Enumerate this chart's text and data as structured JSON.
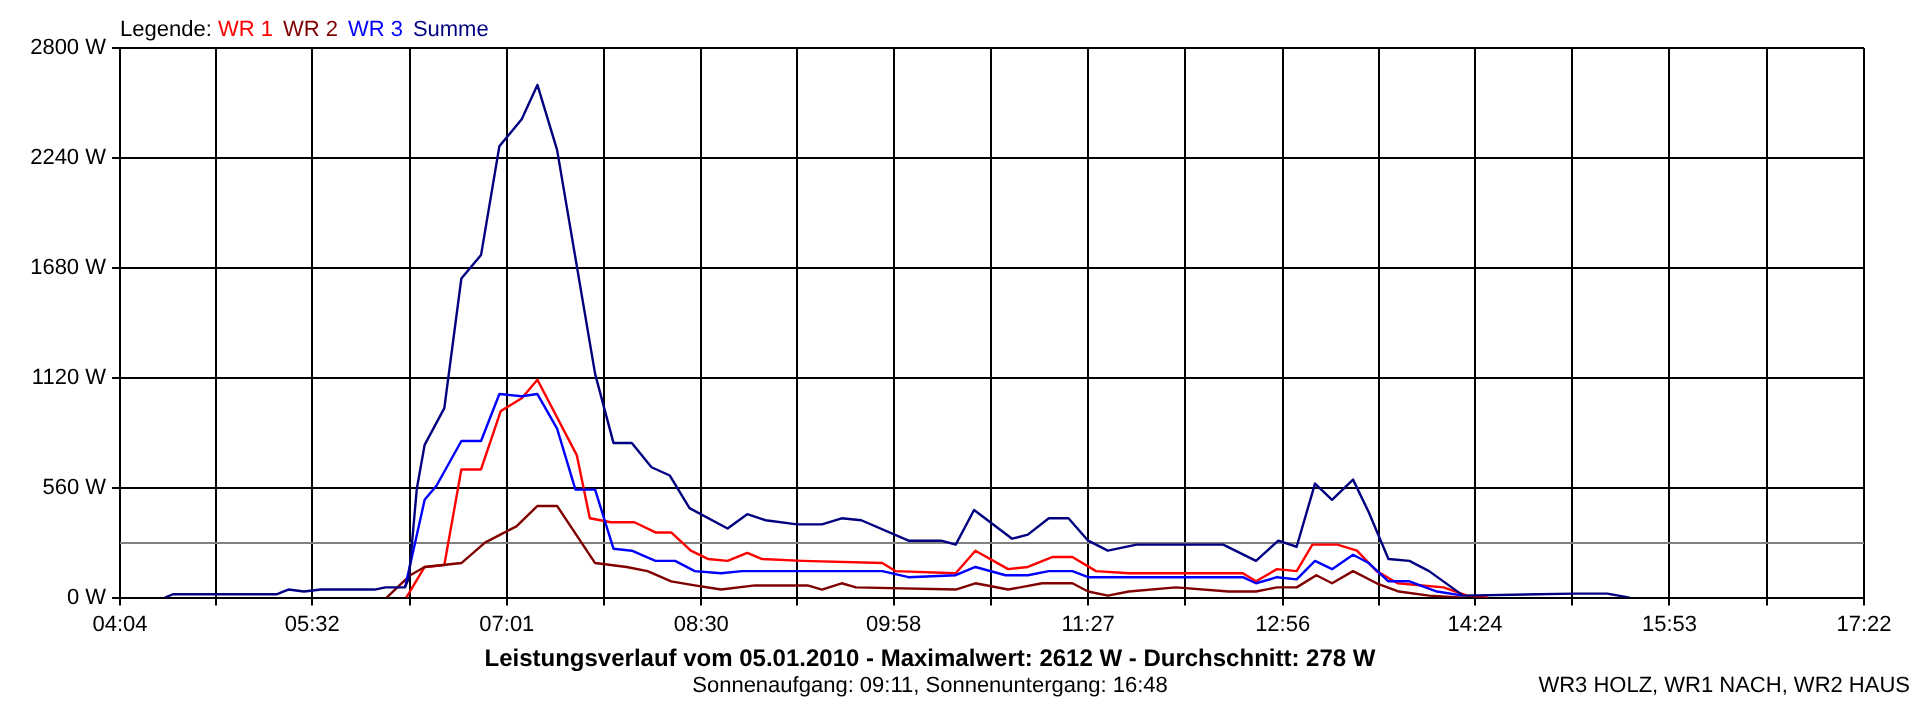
{
  "chart_data": {
    "type": "line",
    "title": "Leistungsverlauf vom 05.01.2010 - Maximalwert: 2612 W - Durchschnitt: 278 W",
    "subtitle": "Sonnenaufgang: 09:11, Sonnenuntergang: 16:48",
    "annotations": [
      "WR3 HOLZ, WR1 NACH, WR2 HAUS"
    ],
    "legend_title": "Legende:",
    "legend": "top left",
    "grid": true,
    "marker": "none",
    "line_style": "solid",
    "xlim": [
      4.0667,
      17.3667
    ],
    "xticks": [
      {
        "value": 4.0667,
        "label": "04:04"
      },
      {
        "value": 4.8,
        "label": null
      },
      {
        "value": 5.5333,
        "label": "05:32"
      },
      {
        "value": 6.275,
        "label": null
      },
      {
        "value": 7.0167,
        "label": "07:01"
      },
      {
        "value": 7.7583,
        "label": null
      },
      {
        "value": 8.5,
        "label": "08:30"
      },
      {
        "value": 9.2333,
        "label": null
      },
      {
        "value": 9.9667,
        "label": "09:58"
      },
      {
        "value": 10.7083,
        "label": null
      },
      {
        "value": 11.45,
        "label": "11:27"
      },
      {
        "value": 12.1917,
        "label": null
      },
      {
        "value": 12.9333,
        "label": "12:56"
      },
      {
        "value": 13.6667,
        "label": null
      },
      {
        "value": 14.4,
        "label": "14:24"
      },
      {
        "value": 15.1417,
        "label": null
      },
      {
        "value": 15.8833,
        "label": "15:53"
      },
      {
        "value": 16.625,
        "label": null
      },
      {
        "value": 17.3667,
        "label": "17:22"
      }
    ],
    "ylim": [
      0,
      2800
    ],
    "yticks": [
      {
        "value": 0,
        "label": "0 W"
      },
      {
        "value": 560,
        "label": "560 W"
      },
      {
        "value": 1120,
        "label": "1120 W"
      },
      {
        "value": 1680,
        "label": "1680 W"
      },
      {
        "value": 2240,
        "label": "2240 W"
      },
      {
        "value": 2800,
        "label": "2800 W"
      }
    ],
    "ref_lines": [
      {
        "axis": "y",
        "value": 278,
        "color": "#808080"
      }
    ],
    "series": [
      {
        "name": "WR 1",
        "color": "#ff0000",
        "x": [
          6.25,
          6.39,
          6.54,
          6.67,
          6.82,
          6.97,
          7.13,
          7.25,
          7.55,
          7.65,
          7.81,
          7.99,
          8.15,
          8.27,
          8.42,
          8.55,
          8.7,
          8.85,
          8.96,
          9.27,
          9.88,
          9.98,
          10.44,
          10.59,
          10.84,
          10.99,
          11.18,
          11.33,
          11.51,
          11.76,
          12.63,
          12.73,
          12.89,
          13.04,
          13.16,
          13.35,
          13.5,
          13.65,
          13.81,
          14.16,
          14.34,
          14.5
        ],
        "values": [
          0,
          156,
          166,
          653,
          653,
          950,
          1016,
          1110,
          726,
          404,
          384,
          384,
          332,
          332,
          239,
          197,
          187,
          228,
          197,
          187,
          176,
          135,
          124,
          239,
          145,
          156,
          207,
          207,
          135,
          124,
          124,
          83,
          145,
          135,
          270,
          270,
          239,
          135,
          73,
          52,
          10,
          0
        ]
      },
      {
        "name": "WR 2",
        "color": "#800000",
        "x": [
          6.1,
          6.28,
          6.39,
          6.67,
          6.85,
          7.09,
          7.25,
          7.4,
          7.69,
          7.93,
          8.09,
          8.27,
          8.45,
          8.65,
          8.91,
          9.31,
          9.42,
          9.57,
          9.68,
          10.44,
          10.59,
          10.84,
          11.1,
          11.33,
          11.45,
          11.6,
          11.76,
          12.12,
          12.52,
          12.73,
          12.89,
          13.04,
          13.19,
          13.31,
          13.47,
          13.65,
          13.82,
          14.05,
          14.31
        ],
        "values": [
          0,
          114,
          156,
          176,
          280,
          363,
          467,
          467,
          176,
          156,
          135,
          83,
          62,
          41,
          62,
          62,
          41,
          73,
          52,
          41,
          73,
          41,
          73,
          73,
          31,
          10,
          31,
          52,
          31,
          31,
          52,
          52,
          114,
          73,
          135,
          73,
          31,
          10,
          0
        ]
      },
      {
        "name": "WR 3",
        "color": "#0000ff",
        "x": [
          6.24,
          6.3,
          6.39,
          6.48,
          6.67,
          6.82,
          6.96,
          7.13,
          7.25,
          7.4,
          7.54,
          7.69,
          7.83,
          7.97,
          8.15,
          8.3,
          8.45,
          8.65,
          8.81,
          9.88,
          10.08,
          10.44,
          10.59,
          10.82,
          10.99,
          11.15,
          11.33,
          11.45,
          12.63,
          12.73,
          12.89,
          13.04,
          13.18,
          13.31,
          13.47,
          13.59,
          13.74,
          13.9,
          14.11,
          14.31
        ],
        "values": [
          52,
          228,
          498,
          570,
          798,
          798,
          1037,
          1026,
          1037,
          861,
          550,
          550,
          249,
          239,
          187,
          187,
          135,
          124,
          135,
          135,
          104,
          114,
          156,
          114,
          114,
          135,
          135,
          104,
          104,
          73,
          104,
          93,
          187,
          145,
          218,
          176,
          83,
          83,
          31,
          10
        ]
      },
      {
        "name": "Summe",
        "color": "#000080",
        "x": [
          4.41,
          4.47,
          5.26,
          5.35,
          5.47,
          5.6,
          6.01,
          6.09,
          6.24,
          6.27,
          6.33,
          6.39,
          6.54,
          6.67,
          6.82,
          6.96,
          7.13,
          7.25,
          7.4,
          7.69,
          7.83,
          7.97,
          8.12,
          8.26,
          8.41,
          8.7,
          8.85,
          8.99,
          9.23,
          9.42,
          9.57,
          9.72,
          10.08,
          10.33,
          10.44,
          10.58,
          10.87,
          10.99,
          11.15,
          11.3,
          11.45,
          11.6,
          11.82,
          12.48,
          12.73,
          12.9,
          13.04,
          13.18,
          13.31,
          13.47,
          13.59,
          13.74,
          13.9,
          14.05,
          14.31,
          15.15,
          15.41,
          15.58
        ],
        "values": [
          0,
          17,
          17,
          41,
          31,
          41,
          41,
          52,
          52,
          100,
          553,
          778,
          965,
          1626,
          1745,
          2300,
          2437,
          2612,
          2281,
          1140,
          788,
          788,
          664,
          622,
          456,
          352,
          425,
          394,
          373,
          373,
          404,
          394,
          290,
          290,
          270,
          446,
          300,
          321,
          404,
          404,
          290,
          239,
          270,
          270,
          187,
          290,
          259,
          581,
          498,
          601,
          435,
          197,
          187,
          135,
          10,
          20,
          20,
          0
        ]
      }
    ]
  }
}
